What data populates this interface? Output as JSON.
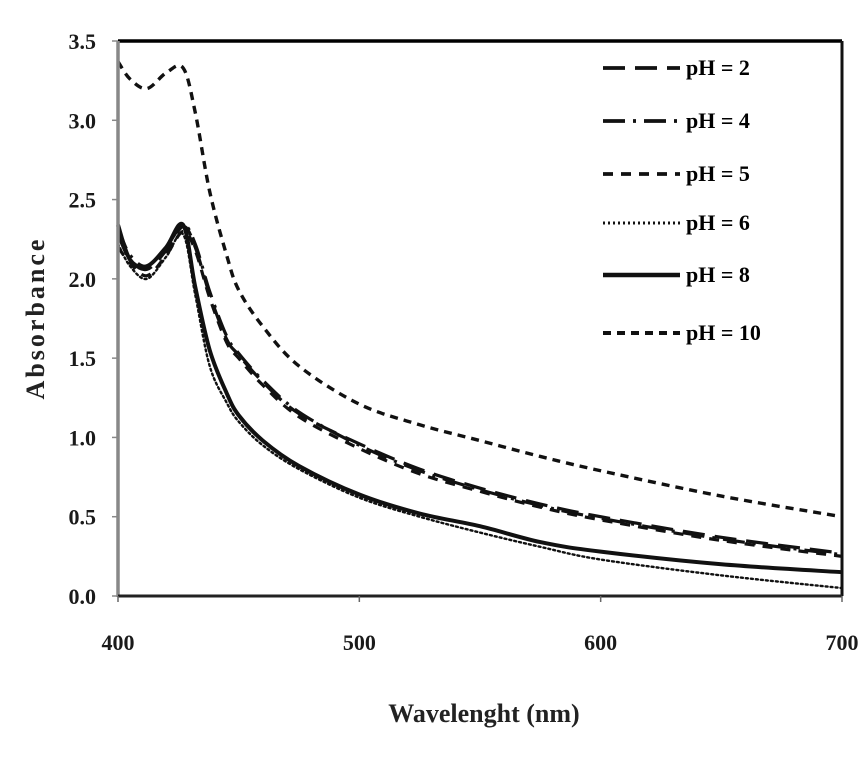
{
  "chart_data": {
    "type": "line",
    "title": "",
    "xlabel": "Wavelenght (nm)",
    "ylabel": "Absorbance",
    "xlim": [
      400,
      700
    ],
    "ylim": [
      0.0,
      3.5
    ],
    "x_ticks": [
      "400",
      "500",
      "600",
      "700"
    ],
    "y_ticks": [
      "0.0",
      "0.5",
      "1.0",
      "1.5",
      "2.0",
      "2.5",
      "3.0",
      "3.5"
    ],
    "grid": false,
    "legend_position": "upper right (inside)",
    "x": [
      400,
      405,
      412,
      420,
      427,
      432,
      438,
      445,
      450,
      460,
      475,
      500,
      525,
      550,
      575,
      600,
      650,
      700
    ],
    "series": [
      {
        "name": "pH = 2",
        "style": "long-dash",
        "values": [
          2.28,
          2.12,
          2.06,
          2.18,
          2.33,
          2.2,
          1.9,
          1.62,
          1.52,
          1.35,
          1.15,
          0.96,
          0.8,
          0.68,
          0.58,
          0.5,
          0.37,
          0.27
        ]
      },
      {
        "name": "pH = 4",
        "style": "dash-dot",
        "values": [
          2.32,
          2.15,
          2.08,
          2.2,
          2.34,
          2.22,
          1.92,
          1.64,
          1.53,
          1.36,
          1.16,
          0.95,
          0.79,
          0.67,
          0.57,
          0.49,
          0.36,
          0.26
        ]
      },
      {
        "name": "pH = 5",
        "style": "short-dash",
        "values": [
          2.2,
          2.1,
          2.02,
          2.15,
          2.3,
          2.18,
          1.88,
          1.6,
          1.5,
          1.33,
          1.13,
          0.93,
          0.77,
          0.66,
          0.56,
          0.48,
          0.35,
          0.25
        ]
      },
      {
        "name": "pH = 6",
        "style": "dotted",
        "values": [
          2.22,
          2.08,
          2.0,
          2.14,
          2.28,
          1.9,
          1.45,
          1.22,
          1.1,
          0.95,
          0.8,
          0.62,
          0.5,
          0.4,
          0.31,
          0.23,
          0.13,
          0.05
        ]
      },
      {
        "name": "pH = 8",
        "style": "solid",
        "values": [
          2.34,
          2.12,
          2.08,
          2.2,
          2.34,
          1.95,
          1.55,
          1.28,
          1.14,
          0.98,
          0.82,
          0.64,
          0.52,
          0.44,
          0.34,
          0.28,
          0.2,
          0.15
        ]
      },
      {
        "name": "pH = 10",
        "style": "dashed",
        "values": [
          3.37,
          3.26,
          3.2,
          3.3,
          3.33,
          3.05,
          2.55,
          2.15,
          1.93,
          1.7,
          1.45,
          1.21,
          1.08,
          0.98,
          0.88,
          0.79,
          0.63,
          0.5
        ]
      }
    ]
  }
}
